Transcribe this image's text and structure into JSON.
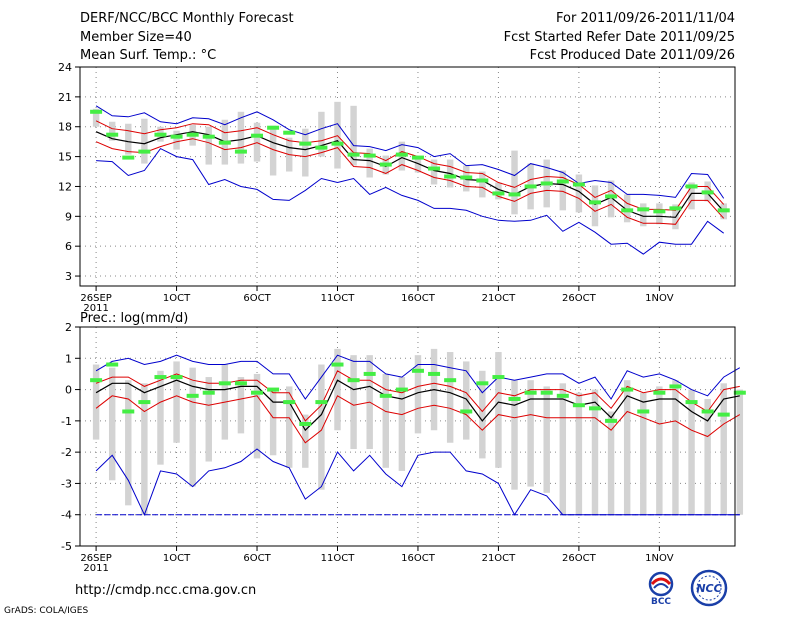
{
  "header": {
    "title": "DERF/NCC/BCC Monthly Forecast",
    "member_size": "Member Size=40",
    "variable": "Mean Surf. Temp.: °C",
    "forecast_range": "For 2011/09/26-2011/11/04",
    "fcst_started": "Fcst Started Refer Date 2011/09/25",
    "fcst_produced": "Fcst Produced Date 2011/09/26"
  },
  "footer": {
    "url": "http://cmdp.ncc.cma.gov.cn",
    "grads": "GrADS: COLA/IGES"
  },
  "logos": {
    "bcc": "BCC",
    "ncc": "NCC"
  },
  "colors": {
    "box": "#d3d3d3",
    "mean": "#000000",
    "spread": "#dd0000",
    "envelope": "#0000cc",
    "observed": "#44ee44",
    "grid": "#888888"
  },
  "chart_data": [
    {
      "type": "line",
      "title": "Mean Surf. Temp.: °C",
      "xlabel": "",
      "ylabel": "",
      "ylim": [
        2,
        24
      ],
      "yticks": [
        3,
        6,
        9,
        12,
        15,
        18,
        21,
        24
      ],
      "xlim": [
        -1,
        39.7
      ],
      "xticks": [
        {
          "day": 0,
          "label": "26SEP",
          "sub": "2011"
        },
        {
          "day": 5,
          "label": "1OCT"
        },
        {
          "day": 10,
          "label": "6OCT"
        },
        {
          "day": 15,
          "label": "11OCT"
        },
        {
          "day": 20,
          "label": "16OCT"
        },
        {
          "day": 25,
          "label": "21OCT"
        },
        {
          "day": 30,
          "label": "26OCT"
        },
        {
          "day": 35,
          "label": "1NOV"
        }
      ],
      "grid": true,
      "series": [
        {
          "name": "ensemble-mean",
          "values": [
            17.5,
            16.8,
            16.5,
            16.3,
            16.9,
            17.2,
            17.5,
            17.2,
            16.5,
            16.7,
            17.1,
            16.4,
            15.9,
            15.7,
            16.1,
            16.6,
            14.7,
            14.6,
            14.0,
            14.9,
            14.3,
            13.6,
            13.3,
            12.7,
            12.6,
            11.7,
            11.2,
            12.0,
            12.3,
            12.2,
            11.5,
            10.2,
            10.9,
            9.6,
            9.0,
            9.0,
            8.9,
            11.3,
            11.3,
            9.5
          ]
        },
        {
          "name": "upper-spread",
          "values": [
            18.6,
            17.8,
            17.6,
            17.3,
            17.7,
            17.9,
            18.3,
            18.2,
            17.4,
            17.6,
            17.9,
            17.2,
            16.6,
            16.4,
            16.6,
            17.1,
            15.4,
            15.3,
            14.6,
            15.5,
            15.0,
            14.3,
            14.0,
            13.4,
            13.3,
            12.4,
            11.9,
            12.7,
            13.0,
            12.9,
            12.2,
            10.9,
            11.6,
            10.3,
            9.7,
            9.7,
            9.6,
            12.0,
            12.0,
            10.2
          ]
        },
        {
          "name": "lower-spread",
          "values": [
            16.5,
            15.8,
            15.5,
            15.4,
            16.0,
            16.5,
            16.8,
            16.4,
            15.7,
            15.9,
            16.4,
            15.7,
            15.2,
            15.0,
            15.4,
            15.9,
            14.0,
            13.9,
            13.3,
            14.2,
            13.6,
            12.9,
            12.6,
            12.0,
            11.9,
            11.0,
            10.5,
            11.3,
            11.6,
            11.5,
            10.8,
            9.5,
            10.2,
            8.9,
            8.3,
            8.3,
            8.2,
            10.6,
            10.6,
            8.8
          ]
        },
        {
          "name": "ensemble-max",
          "values": [
            20.1,
            19.1,
            19.0,
            19.4,
            18.5,
            18.3,
            18.9,
            18.8,
            18.2,
            18.9,
            19.5,
            18.7,
            17.7,
            17.2,
            17.8,
            18.3,
            16.1,
            16.0,
            15.6,
            16.2,
            15.9,
            15.0,
            15.3,
            14.1,
            14.2,
            13.7,
            13.1,
            14.3,
            13.9,
            13.4,
            12.3,
            12.6,
            12.4,
            11.2,
            11.2,
            11.1,
            10.9,
            13.3,
            13.2,
            10.8
          ]
        },
        {
          "name": "ensemble-min",
          "values": [
            14.6,
            14.5,
            13.1,
            13.6,
            15.8,
            15.0,
            14.7,
            12.2,
            12.7,
            12.0,
            11.7,
            10.7,
            10.6,
            11.6,
            12.8,
            12.4,
            12.8,
            11.2,
            11.9,
            11.1,
            10.6,
            9.8,
            9.8,
            9.6,
            9.0,
            8.6,
            8.5,
            8.6,
            9.1,
            7.5,
            8.4,
            7.4,
            6.2,
            6.3,
            5.2,
            6.4,
            6.2,
            6.2,
            8.5,
            7.3
          ]
        },
        {
          "name": "observed",
          "values": [
            19.5,
            17.2,
            14.9,
            15.5,
            17.2,
            17.0,
            17.2,
            17.0,
            16.4,
            15.5,
            17.1,
            17.9,
            17.4,
            16.3,
            15.9,
            16.3,
            15.2,
            15.1,
            14.2,
            15.2,
            14.9,
            13.8,
            13.0,
            12.9,
            12.6,
            11.3,
            11.2,
            12.0,
            12.3,
            12.5,
            12.2,
            10.4,
            11.0,
            9.6,
            9.7,
            9.5,
            9.8,
            12.0,
            11.4,
            9.6
          ]
        }
      ],
      "boxes": {
        "low": [
          18.0,
          16.6,
          15.2,
          14.3,
          16.5,
          15.7,
          16.1,
          14.2,
          14.2,
          14.3,
          14.5,
          13.1,
          13.5,
          13.0,
          15.0,
          13.8,
          14.1,
          12.9,
          13.2,
          13.6,
          13.4,
          12.2,
          11.9,
          11.5,
          10.9,
          10.7,
          9.2,
          9.7,
          9.9,
          9.6,
          9.4,
          8.0,
          8.9,
          8.4,
          8.0,
          8.2,
          7.7,
          9.7,
          10.5,
          8.7
        ],
        "high": [
          19.8,
          18.5,
          18.3,
          18.8,
          18.0,
          17.6,
          18.2,
          18.0,
          18.7,
          19.5,
          18.4,
          18.1,
          16.9,
          17.8,
          19.5,
          20.5,
          20.1,
          15.8,
          15.1,
          16.5,
          15.0,
          14.7,
          14.7,
          14.1,
          13.5,
          12.4,
          15.6,
          14.3,
          14.7,
          13.6,
          13.2,
          12.1,
          12.6,
          11.2,
          10.3,
          10.3,
          10.2,
          12.4,
          12.5,
          10.3
        ]
      }
    },
    {
      "type": "line",
      "title": "Prec.: log(mm/d)",
      "xlabel": "",
      "ylabel": "",
      "ylim": [
        -5,
        2
      ],
      "yticks": [
        -5,
        -4,
        -3,
        -2,
        -1,
        0,
        1,
        2
      ],
      "xlim": [
        -1,
        39.7
      ],
      "xticks": [
        {
          "day": 0,
          "label": "26SEP",
          "sub": "2011"
        },
        {
          "day": 5,
          "label": "1OCT"
        },
        {
          "day": 10,
          "label": "6OCT"
        },
        {
          "day": 15,
          "label": "11OCT"
        },
        {
          "day": 20,
          "label": "16OCT"
        },
        {
          "day": 25,
          "label": "21OCT"
        },
        {
          "day": 30,
          "label": "26OCT"
        },
        {
          "day": 35,
          "label": "1NOV"
        }
      ],
      "grid": true,
      "series": [
        {
          "name": "ensemble-mean",
          "values": [
            -0.1,
            0.2,
            0.2,
            -0.1,
            0.1,
            0.3,
            0.1,
            0.0,
            0.0,
            0.1,
            0.1,
            -0.4,
            -0.4,
            -1.3,
            -0.8,
            0.3,
            0.0,
            0.1,
            -0.2,
            -0.3,
            -0.1,
            0.0,
            -0.1,
            -0.3,
            -1.0,
            -0.4,
            -0.5,
            -0.3,
            -0.3,
            -0.3,
            -0.5,
            -0.4,
            -0.9,
            -0.2,
            -0.4,
            -0.3,
            -0.3,
            -0.7,
            -1.0,
            -0.3,
            -0.2
          ]
        },
        {
          "name": "upper-spread",
          "values": [
            0.2,
            0.4,
            0.4,
            0.1,
            0.3,
            0.5,
            0.3,
            0.2,
            0.2,
            0.3,
            0.3,
            -0.1,
            -0.1,
            -1.0,
            -0.5,
            0.6,
            0.3,
            0.3,
            0.0,
            -0.1,
            0.1,
            0.2,
            0.1,
            -0.1,
            -0.7,
            -0.1,
            -0.2,
            0.0,
            0.0,
            0.0,
            -0.2,
            -0.1,
            -0.6,
            0.1,
            -0.1,
            0.0,
            0.0,
            -0.4,
            -0.7,
            0.0,
            0.1
          ]
        },
        {
          "name": "lower-spread",
          "values": [
            -0.6,
            -0.2,
            -0.3,
            -0.7,
            -0.4,
            -0.2,
            -0.4,
            -0.5,
            -0.4,
            -0.3,
            -0.2,
            -0.9,
            -0.9,
            -1.7,
            -1.3,
            -0.2,
            -0.5,
            -0.4,
            -0.7,
            -0.8,
            -0.6,
            -0.5,
            -0.6,
            -0.8,
            -1.3,
            -0.8,
            -0.9,
            -0.8,
            -0.9,
            -0.9,
            -0.9,
            -0.9,
            -1.3,
            -0.7,
            -0.9,
            -1.1,
            -1.0,
            -1.3,
            -1.5,
            -1.1,
            -0.8
          ]
        },
        {
          "name": "ensemble-max",
          "values": [
            0.6,
            0.9,
            1.0,
            0.8,
            0.9,
            1.1,
            0.9,
            0.8,
            0.8,
            0.9,
            0.9,
            0.5,
            0.5,
            -0.3,
            0.4,
            1.1,
            0.9,
            0.9,
            0.5,
            0.4,
            0.8,
            0.8,
            0.7,
            0.6,
            -0.1,
            0.4,
            0.3,
            0.4,
            0.5,
            0.5,
            0.2,
            0.4,
            -0.3,
            0.6,
            0.4,
            0.5,
            0.3,
            0.0,
            -0.2,
            0.4,
            0.7
          ]
        },
        {
          "name": "ensemble-min",
          "values": [
            -2.6,
            -2.1,
            -2.9,
            -4.0,
            -2.6,
            -2.7,
            -3.1,
            -2.6,
            -2.5,
            -2.3,
            -1.9,
            -2.3,
            -2.5,
            -3.5,
            -3.1,
            -2.0,
            -2.6,
            -2.1,
            -2.7,
            -3.1,
            -2.1,
            -2.0,
            -2.0,
            -2.6,
            -2.7,
            -3.0,
            -4.0,
            -3.2,
            -3.4,
            -4.0,
            -4.0,
            -4.0,
            -4.0,
            -4.0,
            -4.0,
            -4.0,
            -4.0,
            -4.0,
            -4.0,
            -4.0,
            -4.0
          ]
        },
        {
          "name": "observed",
          "values": [
            0.3,
            0.8,
            -0.7,
            -0.4,
            0.4,
            0.4,
            -0.2,
            -0.1,
            0.2,
            0.2,
            -0.1,
            0.0,
            -0.4,
            -1.1,
            -0.4,
            0.8,
            0.3,
            0.5,
            -0.2,
            0.0,
            0.6,
            0.5,
            0.3,
            -0.7,
            0.2,
            0.4,
            -0.3,
            -0.1,
            -0.1,
            -0.2,
            -0.5,
            -0.6,
            -1.0,
            0.0,
            -0.7,
            -0.1,
            0.1,
            -0.4,
            -0.7,
            -0.8,
            -0.1
          ]
        },
        {
          "name": "floor",
          "values": [
            -4,
            -4,
            -4,
            -4,
            -4,
            -4,
            -4,
            -4,
            -4,
            -4,
            -4,
            -4,
            -4,
            -4,
            -4,
            -4,
            -4,
            -4,
            -4,
            -4,
            -4,
            -4,
            -4,
            -4,
            -4,
            -4,
            -4,
            -4,
            -4,
            -4,
            -4,
            -4,
            -4,
            -4,
            -4,
            -4,
            -4,
            -4,
            -4,
            -4,
            -4
          ]
        }
      ],
      "boxes": {
        "low": [
          -1.6,
          -2.9,
          -3.7,
          -4.0,
          -2.4,
          -1.7,
          -3.1,
          -2.3,
          -1.6,
          -1.4,
          -2.2,
          -2.1,
          -2.5,
          -2.5,
          -3.2,
          -1.3,
          -1.9,
          -1.9,
          -2.5,
          -2.6,
          -1.4,
          -1.3,
          -1.7,
          -1.6,
          -2.2,
          -2.5,
          -3.2,
          -3.1,
          -3.3,
          -4.0,
          -4.0,
          -4.0,
          -4.0,
          -4.0,
          -4.0,
          -4.0,
          -4.0,
          -4.0,
          -4.0,
          -4.0,
          -4.0
        ],
        "high": [
          0.8,
          0.7,
          0.3,
          0.2,
          0.6,
          0.9,
          0.7,
          0.4,
          0.8,
          0.4,
          0.5,
          0.0,
          0.1,
          -0.8,
          0.8,
          1.3,
          1.1,
          1.1,
          0.5,
          0.4,
          1.1,
          1.3,
          1.2,
          0.9,
          0.6,
          1.2,
          0.3,
          0.3,
          0.1,
          0.2,
          -0.1,
          0.0,
          -0.7,
          0.3,
          -0.1,
          0.1,
          0.3,
          0.0,
          -0.3,
          0.2,
          0.0
        ]
      }
    }
  ]
}
